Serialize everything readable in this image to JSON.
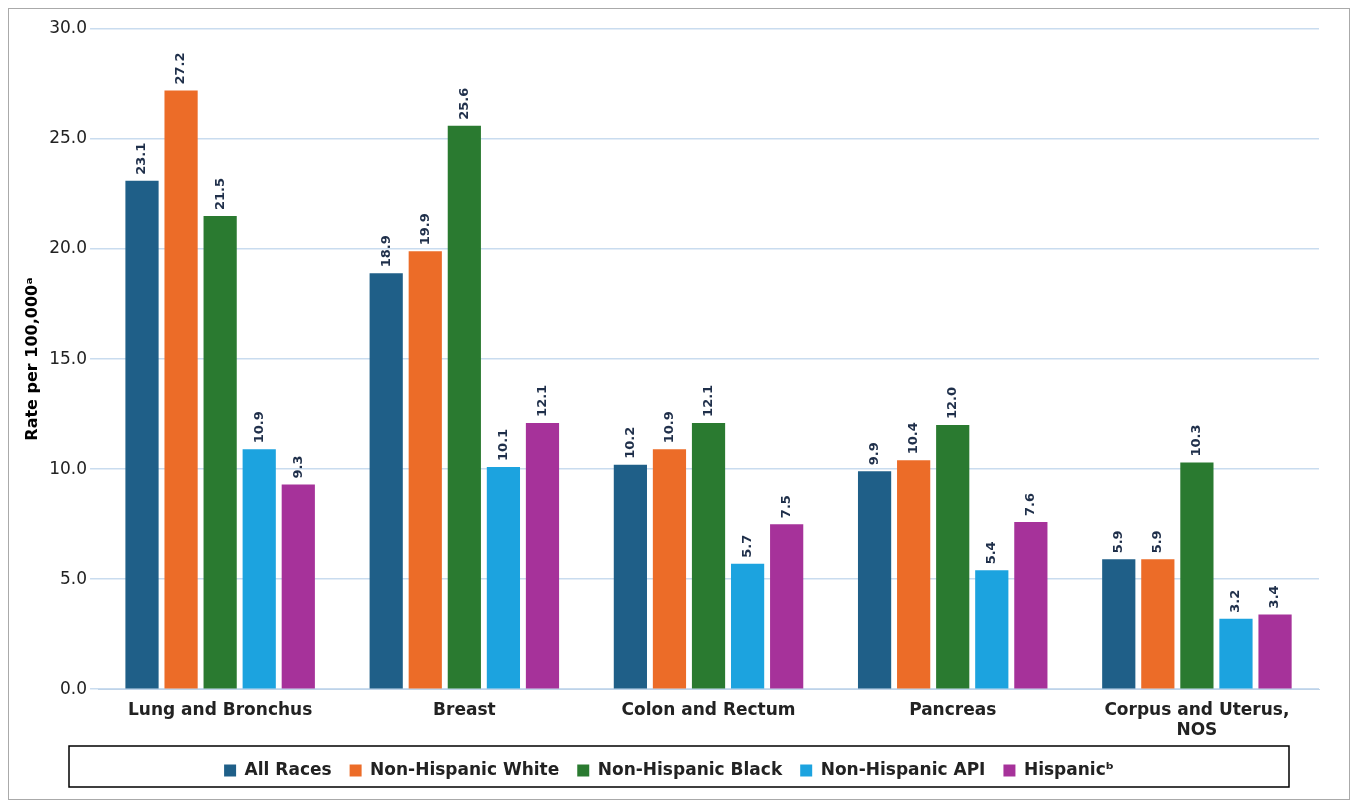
{
  "chart_data": {
    "type": "bar",
    "ylabel": "Rate per 100,000ᵃ",
    "categories": [
      "Lung and Bronchus",
      "Breast",
      "Colon and Rectum",
      "Pancreas",
      "Corpus and Uterus, NOS"
    ],
    "series": [
      {
        "name": "All Races",
        "color": "#1f5f88",
        "values": [
          23.1,
          18.9,
          10.2,
          9.9,
          5.9
        ]
      },
      {
        "name": "Non-Hispanic White",
        "color": "#ec6c28",
        "values": [
          27.2,
          19.9,
          10.9,
          10.4,
          5.9
        ]
      },
      {
        "name": "Non-Hispanic Black",
        "color": "#2a7a30",
        "values": [
          21.5,
          25.6,
          12.1,
          12.0,
          10.3
        ],
        "value_labels": [
          "21.5",
          "25.6",
          "12.1",
          "12.0",
          "10.3"
        ]
      },
      {
        "name": "Non-Hispanic API",
        "color": "#1ca3df",
        "values": [
          10.9,
          10.1,
          5.7,
          5.4,
          3.2
        ]
      },
      {
        "name": "Hispanicᵇ",
        "color": "#a6329a",
        "values": [
          9.3,
          12.1,
          7.5,
          7.6,
          3.4
        ]
      }
    ],
    "ylim": [
      0,
      30
    ],
    "yticks": [
      {
        "value": 0,
        "label": "0.0"
      },
      {
        "value": 5,
        "label": "5.0"
      },
      {
        "value": 10,
        "label": "10.0"
      },
      {
        "value": 15,
        "label": "15.0"
      },
      {
        "value": 20,
        "label": "20.0"
      },
      {
        "value": 25,
        "label": "25.0"
      },
      {
        "value": 30,
        "label": "30.0"
      }
    ],
    "grid": "y",
    "legend": "bottom",
    "data_labels": true
  }
}
